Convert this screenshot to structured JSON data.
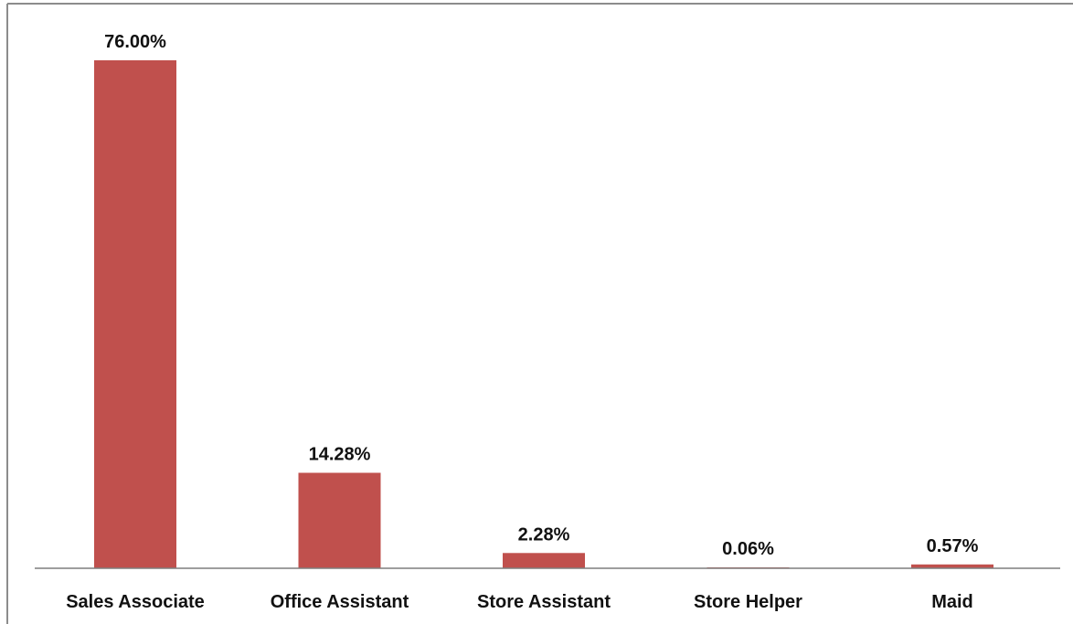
{
  "chart_data": {
    "type": "bar",
    "categories": [
      "Sales Associate",
      "Office Assistant",
      "Store Assistant",
      "Store Helper",
      "Maid"
    ],
    "values": [
      76.0,
      14.28,
      2.28,
      0.06,
      0.57
    ],
    "data_labels": [
      "76.00%",
      "14.28%",
      "2.28%",
      "0.06%",
      "0.57%"
    ],
    "title": "",
    "xlabel": "",
    "ylabel": "",
    "ylim": [
      0,
      76.0
    ],
    "grid": false,
    "legend": "none",
    "bar_color": "#C0504D",
    "axis_color": "#7F7F7F",
    "frame_color": "#8C8C8C"
  }
}
